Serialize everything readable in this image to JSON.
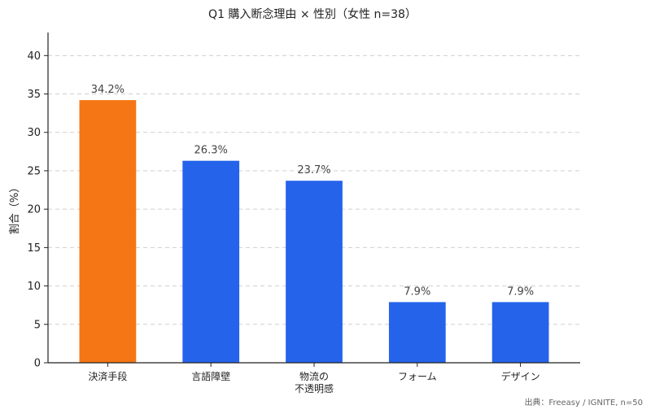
{
  "chart_data": {
    "type": "bar",
    "title": "Q1 購入断念理由 × 性別（女性 n=38）",
    "xlabel": "",
    "ylabel": "割合（%）",
    "ylim": [
      0,
      43
    ],
    "yticks": [
      0,
      5,
      10,
      15,
      20,
      25,
      30,
      35,
      40
    ],
    "grid": true,
    "categories": [
      [
        "決済手段"
      ],
      [
        "言語障壁"
      ],
      [
        "物流の",
        "不透明感"
      ],
      [
        "フォーム"
      ],
      [
        "デザイン"
      ]
    ],
    "values": [
      34.2,
      26.3,
      23.7,
      7.9,
      7.9
    ],
    "data_labels": [
      "34.2%",
      "26.3%",
      "23.7%",
      "7.9%",
      "7.9%"
    ],
    "bar_colors": [
      "#f57614",
      "#2563eb",
      "#2563eb",
      "#2563eb",
      "#2563eb"
    ]
  },
  "source": "出典：Freeasy / IGNITE, n=50"
}
